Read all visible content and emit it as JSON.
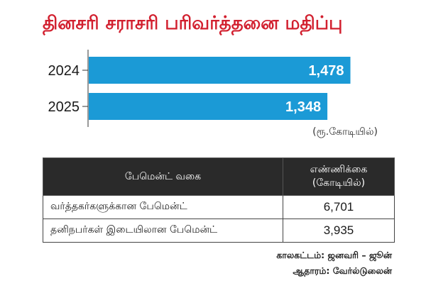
{
  "title": "தினசரி சராசரி பரிவர்த்தனை மதிப்பு",
  "unit_note": "(ரூ.கோடியில்)",
  "chart_data": {
    "type": "bar",
    "orientation": "horizontal",
    "title": "தினசரி சராசரி பரிவர்த்தனை மதிப்பு",
    "categories": [
      "2024",
      "2025"
    ],
    "values": [
      1478,
      1348
    ],
    "value_labels": [
      "1,478",
      "1,348"
    ],
    "xlim": [
      0,
      1500
    ],
    "grid": false,
    "bar_color": "#1b9ad6"
  },
  "table": {
    "headers": [
      "பேமென்ட் வகை",
      "எண்ணிக்கை",
      "(கோடியில்)"
    ],
    "rows": [
      {
        "type": "வர்த்தகர்களுக்கான பேமென்ட்",
        "count": "6,701"
      },
      {
        "type": "தனிநபர்கள் இடையிலான பேமென்ட்",
        "count": "3,935"
      }
    ]
  },
  "footer": {
    "period": "காலகட்டம்: ஜனவரி – ஜூன்",
    "source": "ஆதாரம்: வேர்ல்டுலைன்"
  },
  "colors": {
    "title": "#d2202f",
    "bar": "#1b9ad6",
    "header_bg": "#2a2a2a"
  }
}
